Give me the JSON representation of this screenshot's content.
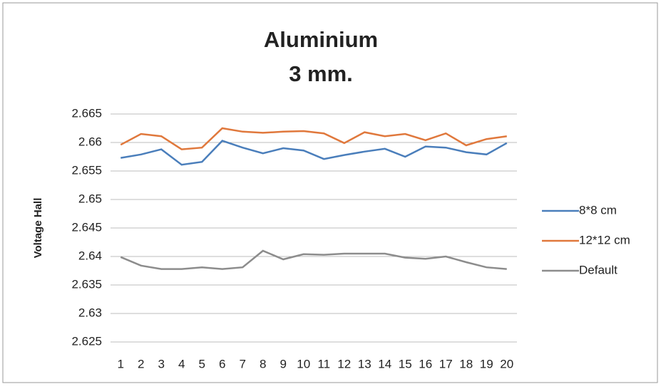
{
  "chart_data": {
    "type": "line",
    "title": "Aluminium",
    "subtitle": "3 mm.",
    "y_label": "Voltage Hall",
    "categories": [
      "1",
      "2",
      "3",
      "4",
      "5",
      "6",
      "7",
      "8",
      "9",
      "10",
      "11",
      "12",
      "13",
      "14",
      "15",
      "16",
      "17",
      "18",
      "19",
      "20"
    ],
    "series": [
      {
        "name": "8*8 cm",
        "color": "#4a7ebb",
        "values": [
          2.6573,
          2.6579,
          2.6588,
          2.6561,
          2.6566,
          2.6603,
          2.6591,
          2.6581,
          2.659,
          2.6586,
          2.6571,
          2.6578,
          2.6584,
          2.6589,
          2.6575,
          2.6593,
          2.6591,
          2.6583,
          2.6579,
          2.6599
        ]
      },
      {
        "name": "12*12 cm",
        "color": "#e0783c",
        "values": [
          2.6596,
          2.6615,
          2.6611,
          2.6588,
          2.6591,
          2.6625,
          2.6619,
          2.6617,
          2.6619,
          2.662,
          2.6616,
          2.6599,
          2.6618,
          2.6611,
          2.6615,
          2.6604,
          2.6616,
          2.6595,
          2.6606,
          2.6611
        ]
      },
      {
        "name": "Default",
        "color": "#8c8c8c",
        "values": [
          2.6399,
          2.6384,
          2.6378,
          2.6378,
          2.6381,
          2.6378,
          2.6381,
          2.641,
          2.6395,
          2.6404,
          2.6403,
          2.6405,
          2.6405,
          2.6405,
          2.6398,
          2.6396,
          2.64,
          2.639,
          2.6381,
          2.6378
        ]
      }
    ],
    "ylim": [
      2.625,
      2.665
    ],
    "yticks": [
      2.625,
      2.63,
      2.635,
      2.64,
      2.645,
      2.65,
      2.655,
      2.66,
      2.665
    ],
    "grid": true,
    "legend": "right"
  }
}
